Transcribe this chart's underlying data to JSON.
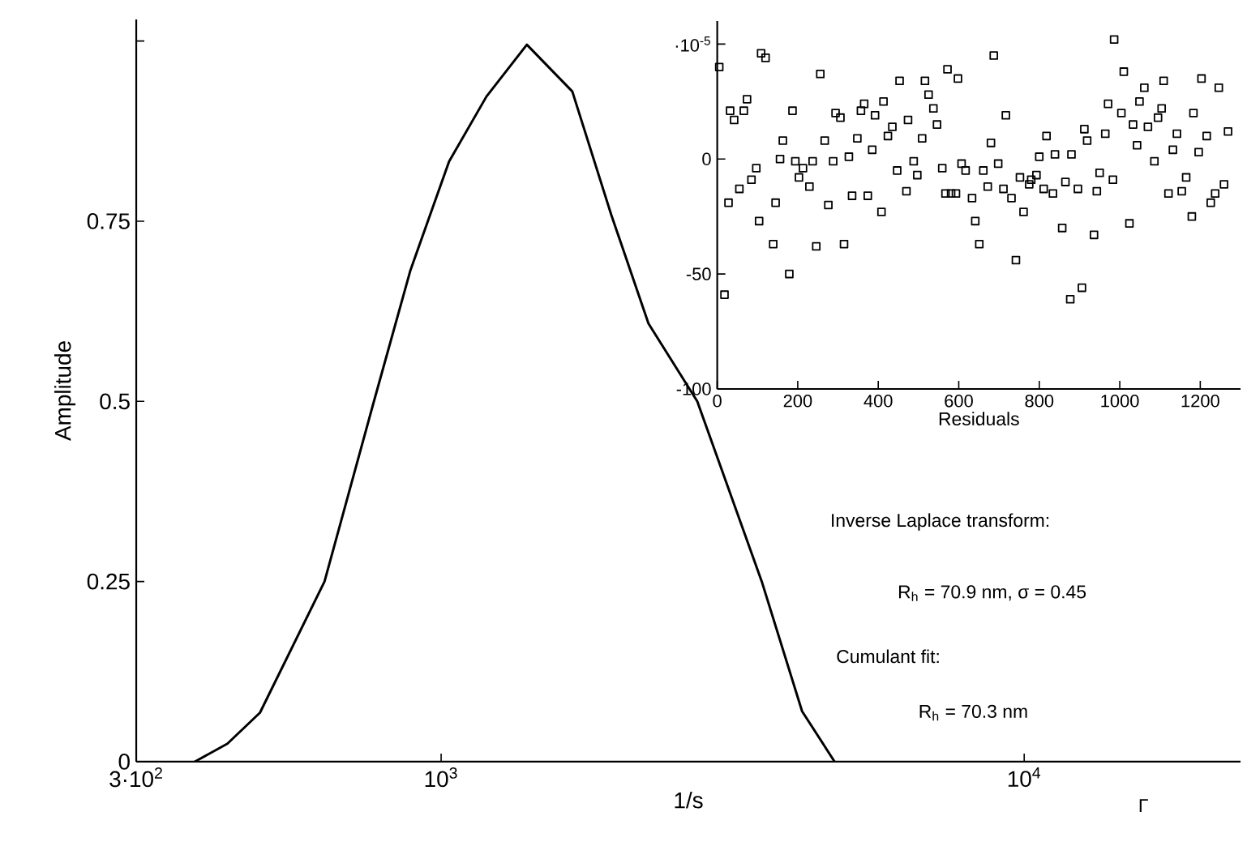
{
  "chart_data": [
    {
      "type": "line",
      "xlabel": "1/s",
      "ylabel": "Amplitude",
      "log": "x",
      "marker": "none",
      "xlim": [
        300,
        23500
      ],
      "ylim": [
        0,
        1.03
      ],
      "xticks": [
        {
          "value": 300,
          "label": "3·10$^{2}$"
        },
        {
          "value": 1000,
          "label": "10$^{3}$"
        },
        {
          "value": 10000,
          "label": "10$^{4}$"
        }
      ],
      "yticks": [
        0,
        0.25,
        0.5,
        0.75,
        {
          "value": 1,
          "label": null
        }
      ],
      "x": [
        378,
        430,
        489,
        631,
        764,
        886,
        1032,
        1196,
        1403,
        1679,
        1958,
        2268,
        2750,
        3548,
        4160,
        4730
      ],
      "series": [
        {
          "color": "#000000",
          "values": [
            0,
            0.025,
            0.068,
            0.25,
            0.495,
            0.682,
            0.833,
            0.923,
            0.995,
            0.93,
            0.759,
            0.608,
            0.5,
            0.25,
            0.07,
            0
          ]
        }
      ],
      "annotations": [
        "Γ",
        "Inverse Laplace transform:",
        "R$_{h}$ = 70.9 nm,  σ = 0.45",
        "Cumulant fit:",
        "R$_{h}$ = 70.3 nm"
      ]
    },
    {
      "type": "scatter",
      "xlabel": "Residuals",
      "marker": "square",
      "xlim": [
        0,
        1300
      ],
      "ylim": [
        -100,
        60
      ],
      "xticks": [
        0,
        200,
        400,
        600,
        800,
        1000,
        1200
      ],
      "yticks": [
        -100,
        -50,
        0,
        {
          "value": 50,
          "label": "·10$^{-5}$"
        }
      ],
      "x": [
        5,
        18,
        28,
        32,
        42,
        55,
        66,
        74,
        85,
        97,
        104,
        109,
        120,
        139,
        145,
        156,
        163,
        179,
        187,
        194,
        203,
        213,
        229,
        237,
        246,
        256,
        267,
        276,
        288,
        294,
        306,
        315,
        327,
        335,
        348,
        357,
        365,
        374,
        385,
        392,
        408,
        413,
        424,
        435,
        447,
        453,
        470,
        474,
        488,
        497,
        509,
        516,
        525,
        537,
        546,
        559,
        567,
        572,
        581,
        593,
        598,
        607,
        617,
        633,
        641,
        651,
        661,
        672,
        680,
        687,
        698,
        711,
        717,
        731,
        742,
        752,
        761,
        775,
        780,
        793,
        800,
        811,
        818,
        834,
        839,
        857,
        865,
        880,
        877,
        896,
        906,
        912,
        919,
        936,
        943,
        950,
        964,
        971,
        983,
        986,
        1004,
        1010,
        1024,
        1033,
        1043,
        1049,
        1061,
        1070,
        1086,
        1095,
        1104,
        1109,
        1121,
        1132,
        1142,
        1154,
        1165,
        1179,
        1183,
        1196,
        1203,
        1216,
        1226,
        1237,
        1246,
        1259,
        1269
      ],
      "color": "#000000",
      "values": [
        40,
        -59,
        -19,
        21,
        17,
        -13,
        21,
        26,
        -9,
        -4,
        -27,
        46,
        44,
        -37,
        -19,
        0,
        8,
        -50,
        21,
        -1,
        -8,
        -4,
        -12,
        -1,
        -38,
        37,
        8,
        -20,
        -1,
        20,
        18,
        -37,
        1,
        -16,
        9,
        21,
        24,
        -16,
        4,
        19,
        -23,
        25,
        10,
        14,
        -5,
        34,
        -14,
        17,
        -1,
        -7,
        9,
        34,
        28,
        22,
        15,
        -4,
        -15,
        39,
        -15,
        -15,
        35,
        -2,
        -5,
        -17,
        -27,
        -37,
        -5,
        -12,
        7,
        45,
        -2,
        -13,
        19,
        -17,
        -44,
        -8,
        -23,
        -11,
        -9,
        -7,
        1,
        -13,
        10,
        -15,
        2,
        -30,
        -10,
        2,
        -61,
        -13,
        -56,
        13,
        8,
        -33,
        -14,
        -6,
        11,
        24,
        -9,
        52,
        20,
        38,
        -28,
        15,
        6,
        25,
        31,
        14,
        -1,
        18,
        22,
        34,
        -15,
        4,
        11,
        -14,
        -8,
        -25,
        20,
        3,
        35,
        10,
        -19,
        -15,
        31,
        -11,
        12
      ]
    }
  ]
}
